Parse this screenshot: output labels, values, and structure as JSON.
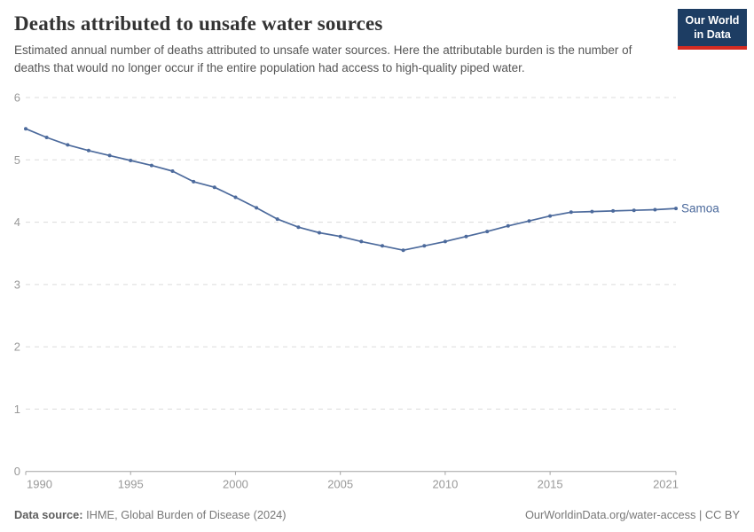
{
  "header": {
    "title": "Deaths attributed to unsafe water sources",
    "subtitle": "Estimated annual number of deaths attributed to unsafe water sources. Here the attributable burden is the number of deaths that would no longer occur if the entire population had access to high-quality piped water.",
    "logo": {
      "line1": "Our World",
      "line2": "in Data",
      "bg_color": "#1d3d63",
      "accent_color": "#d42b21"
    }
  },
  "chart_data": {
    "type": "line",
    "title": "Deaths attributed to unsafe water sources",
    "xlabel": "",
    "ylabel": "",
    "xlim": [
      1990,
      2021
    ],
    "ylim": [
      0,
      6
    ],
    "xticks": [
      1990,
      1995,
      2000,
      2005,
      2010,
      2015,
      2021
    ],
    "yticks": [
      0,
      1,
      2,
      3,
      4,
      5,
      6
    ],
    "grid": "horizontal-dashed",
    "legend_position": "line-end-label",
    "x": [
      1990,
      1991,
      1992,
      1993,
      1994,
      1995,
      1996,
      1997,
      1998,
      1999,
      2000,
      2001,
      2002,
      2003,
      2004,
      2005,
      2006,
      2007,
      2008,
      2009,
      2010,
      2011,
      2012,
      2013,
      2014,
      2015,
      2016,
      2017,
      2018,
      2019,
      2020,
      2021
    ],
    "series": [
      {
        "name": "Samoa",
        "color": "#4C6A9C",
        "values": [
          5.5,
          5.36,
          5.24,
          5.15,
          5.07,
          4.99,
          4.91,
          4.82,
          4.65,
          4.56,
          4.4,
          4.23,
          4.05,
          3.92,
          3.83,
          3.77,
          3.69,
          3.62,
          3.55,
          3.62,
          3.69,
          3.77,
          3.85,
          3.94,
          4.02,
          4.1,
          4.16,
          4.17,
          4.18,
          4.19,
          4.2,
          4.22
        ]
      }
    ],
    "colors": {
      "grid": "#dcdcdc",
      "axis_text": "#999999",
      "axis_line": "#a3a3a3"
    }
  },
  "footer": {
    "source_label": "Data source:",
    "source_value": " IHME, Global Burden of Disease (2024)",
    "note_right": "OurWorldinData.org/water-access | CC BY"
  }
}
